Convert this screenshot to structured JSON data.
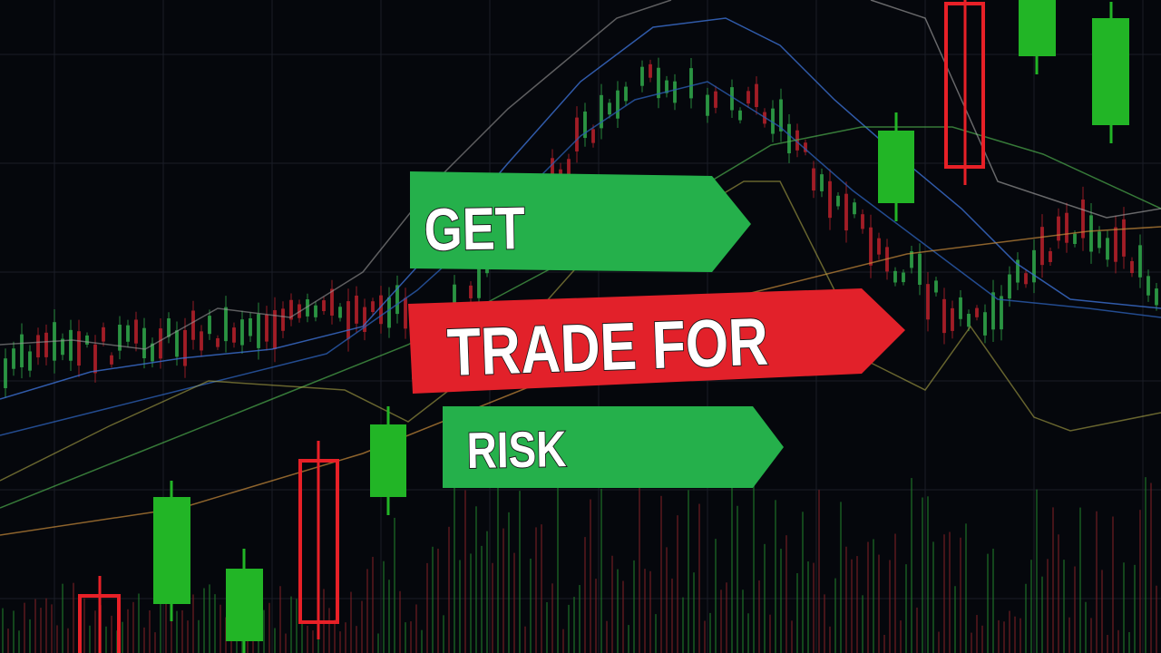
{
  "banners": {
    "top": "GET",
    "middle": "TRADE FOR",
    "bottom": "RISK"
  }
}
